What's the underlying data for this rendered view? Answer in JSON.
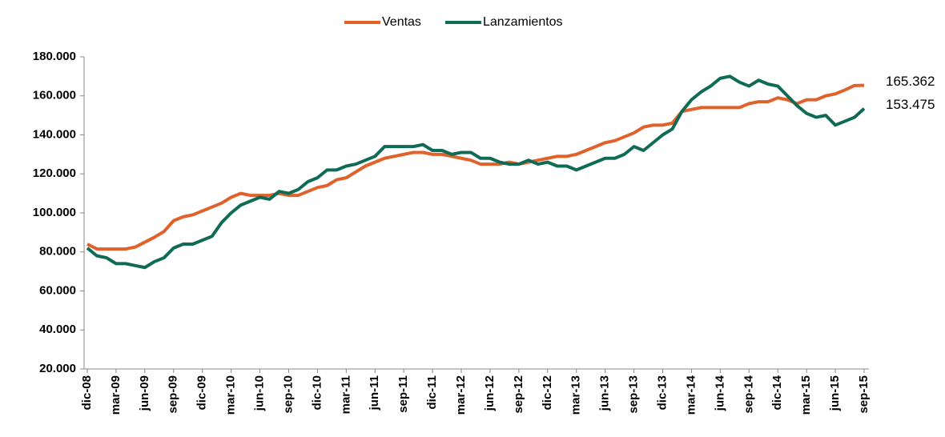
{
  "chart_data": {
    "type": "line",
    "categories": [
      "dic-08",
      null,
      null,
      "mar-09",
      null,
      null,
      "jun-09",
      null,
      null,
      "sep-09",
      null,
      null,
      "dic-09",
      null,
      null,
      "mar-10",
      null,
      null,
      "jun-10",
      null,
      null,
      "sep-10",
      null,
      null,
      "dic-10",
      null,
      null,
      "mar-11",
      null,
      null,
      "jun-11",
      null,
      null,
      "sep-11",
      null,
      null,
      "dic-11",
      null,
      null,
      "mar-12",
      null,
      null,
      "jun-12",
      null,
      null,
      "sep-12",
      null,
      null,
      "dic-12",
      null,
      null,
      "mar-13",
      null,
      null,
      "jun-13",
      null,
      null,
      "sep-13",
      null,
      null,
      "dic-13",
      null,
      null,
      "mar-14",
      null,
      null,
      "jun-14",
      null,
      null,
      "sep-14",
      null,
      null,
      "dic-14",
      null,
      null,
      "mar-15",
      null,
      null,
      "jun-15",
      null,
      null,
      "sep-15"
    ],
    "series": [
      {
        "name": "Ventas",
        "color": "#e0622a",
        "values": [
          84000,
          81500,
          81500,
          81500,
          81500,
          82500,
          85000,
          87500,
          90500,
          96000,
          98000,
          99000,
          101000,
          103000,
          105000,
          108000,
          110000,
          109000,
          109000,
          109000,
          110000,
          109000,
          109000,
          111000,
          113000,
          114000,
          117000,
          118000,
          121000,
          124000,
          126000,
          128000,
          129000,
          130000,
          131000,
          131000,
          130000,
          130000,
          129000,
          128000,
          127000,
          125000,
          125000,
          125000,
          126000,
          125000,
          126000,
          127000,
          128000,
          129000,
          129000,
          130000,
          132000,
          134000,
          136000,
          137000,
          139000,
          141000,
          144000,
          145000,
          145000,
          146000,
          152000,
          153000,
          154000,
          154000,
          154000,
          154000,
          154000,
          156000,
          157000,
          157000,
          159000,
          158000,
          156000,
          158000,
          158000,
          160000,
          161000,
          163000,
          165300,
          165362
        ],
        "value_labels": [
          null,
          null,
          null,
          null,
          null,
          null,
          null,
          null,
          null,
          null,
          null,
          null,
          null,
          null,
          null,
          null,
          null,
          null,
          null,
          null,
          null,
          null,
          null,
          null,
          null,
          null,
          null,
          null,
          null,
          null,
          null,
          null,
          null,
          null,
          null,
          null,
          null,
          null,
          null,
          null,
          null,
          null,
          null,
          null,
          null,
          null,
          null,
          null,
          null,
          null,
          null,
          null,
          null,
          null,
          null,
          null,
          null,
          null,
          null,
          null,
          null,
          null,
          null,
          null,
          null,
          null,
          null,
          null,
          null,
          null,
          null,
          null,
          null,
          null,
          null,
          null,
          null,
          null,
          null,
          null,
          null,
          "165.362"
        ]
      },
      {
        "name": "Lanzamientos",
        "color": "#0f6b55",
        "values": [
          82000,
          78000,
          77000,
          74000,
          74000,
          73000,
          72000,
          75000,
          77000,
          82000,
          84000,
          84000,
          86000,
          88000,
          95000,
          100000,
          104000,
          106000,
          108000,
          107000,
          111000,
          110000,
          112000,
          116000,
          118000,
          122000,
          122000,
          124000,
          125000,
          127000,
          129000,
          134000,
          134000,
          134000,
          134000,
          135000,
          132000,
          132000,
          130000,
          131000,
          131000,
          128000,
          128000,
          126000,
          125000,
          125000,
          127000,
          125000,
          126000,
          124000,
          124000,
          122000,
          124000,
          126000,
          128000,
          128000,
          130000,
          134000,
          132000,
          136000,
          140000,
          143000,
          152000,
          158000,
          162000,
          165000,
          169000,
          170000,
          167000,
          165000,
          168000,
          166000,
          165000,
          160000,
          155000,
          151000,
          149000,
          150000,
          145000,
          147000,
          149000,
          153475
        ],
        "value_labels": [
          null,
          null,
          null,
          null,
          null,
          null,
          null,
          null,
          null,
          null,
          null,
          null,
          null,
          null,
          null,
          null,
          null,
          null,
          null,
          null,
          null,
          null,
          null,
          null,
          null,
          null,
          null,
          null,
          null,
          null,
          null,
          null,
          null,
          null,
          null,
          null,
          null,
          null,
          null,
          null,
          null,
          null,
          null,
          null,
          null,
          null,
          null,
          null,
          null,
          null,
          null,
          null,
          null,
          null,
          null,
          null,
          null,
          null,
          null,
          null,
          null,
          null,
          null,
          null,
          null,
          null,
          null,
          null,
          null,
          null,
          null,
          null,
          null,
          null,
          null,
          null,
          null,
          null,
          null,
          null,
          null,
          "153.475"
        ]
      }
    ],
    "ylim": [
      20000,
      180000
    ],
    "yticks": [
      {
        "value": 20000,
        "label": "20.000"
      },
      {
        "value": 40000,
        "label": "40.000"
      },
      {
        "value": 60000,
        "label": "60.000"
      },
      {
        "value": 80000,
        "label": "80.000"
      },
      {
        "value": 100000,
        "label": "100.000"
      },
      {
        "value": 120000,
        "label": "120.000"
      },
      {
        "value": 140000,
        "label": "140.000"
      },
      {
        "value": 160000,
        "label": "160.000"
      },
      {
        "value": 180000,
        "label": "180.000"
      }
    ],
    "grid": false,
    "legend": "top"
  }
}
